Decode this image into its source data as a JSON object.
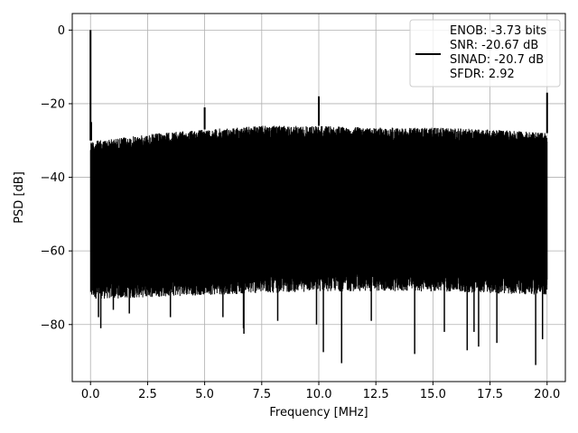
{
  "chart_data": {
    "type": "line",
    "xlabel": "Frequency [MHz]",
    "ylabel": "PSD [dB]",
    "xlim": [
      -0.8,
      20.8
    ],
    "ylim": [
      -95.5,
      4.5
    ],
    "xticks": [
      0.0,
      2.5,
      5.0,
      7.5,
      10.0,
      12.5,
      15.0,
      17.5,
      20.0
    ],
    "xtick_labels": [
      "0.0",
      "2.5",
      "5.0",
      "7.5",
      "10.0",
      "12.5",
      "15.0",
      "17.5",
      "20.0"
    ],
    "yticks": [
      0,
      -20,
      -40,
      -60,
      -80
    ],
    "ytick_labels": [
      "0",
      "−20",
      "−40",
      "−60",
      "−80"
    ],
    "grid": true,
    "legend_position": "top-right",
    "series": [
      {
        "name": "ENOB: -3.73 bits\nSNR: -20.67 dB\nSINAD: -20.7 dB\nSFDR: 2.92",
        "color": "#000000",
        "description": "dense noisy PSD trace",
        "envelope_top": {
          "x": [
            0.0,
            0.3,
            1.0,
            3.0,
            5.0,
            7.5,
            10.0,
            12.5,
            15.0,
            17.5,
            19.0,
            20.0
          ],
          "y": [
            -30,
            -30,
            -29.5,
            -28,
            -27,
            -26,
            -26,
            -26.5,
            -26.5,
            -27,
            -27.5,
            -28
          ]
        },
        "envelope_bottom": {
          "x": [
            0.0,
            1.0,
            5.0,
            10.0,
            15.0,
            20.0
          ],
          "y": [
            -70,
            -70,
            -69,
            -68,
            -68,
            -69
          ]
        },
        "spikes": [
          {
            "x": 0.0,
            "y": 0
          },
          {
            "x": 0.03,
            "y": -25
          },
          {
            "x": 5.0,
            "y": -21
          },
          {
            "x": 10.0,
            "y": -18
          },
          {
            "x": 20.0,
            "y": -17
          }
        ],
        "dips": [
          {
            "x": 0.35,
            "y": -78
          },
          {
            "x": 0.45,
            "y": -81
          },
          {
            "x": 1.0,
            "y": -76
          },
          {
            "x": 1.7,
            "y": -77
          },
          {
            "x": 3.5,
            "y": -78
          },
          {
            "x": 5.8,
            "y": -78
          },
          {
            "x": 6.7,
            "y": -81
          },
          {
            "x": 6.72,
            "y": -82.5
          },
          {
            "x": 8.2,
            "y": -79
          },
          {
            "x": 9.9,
            "y": -80
          },
          {
            "x": 10.2,
            "y": -87.5
          },
          {
            "x": 11.0,
            "y": -90.5
          },
          {
            "x": 12.3,
            "y": -79
          },
          {
            "x": 14.2,
            "y": -88
          },
          {
            "x": 15.5,
            "y": -82
          },
          {
            "x": 16.5,
            "y": -87
          },
          {
            "x": 16.8,
            "y": -82
          },
          {
            "x": 17.0,
            "y": -86
          },
          {
            "x": 17.8,
            "y": -85
          },
          {
            "x": 19.5,
            "y": -91
          },
          {
            "x": 19.8,
            "y": -84
          }
        ]
      }
    ]
  }
}
